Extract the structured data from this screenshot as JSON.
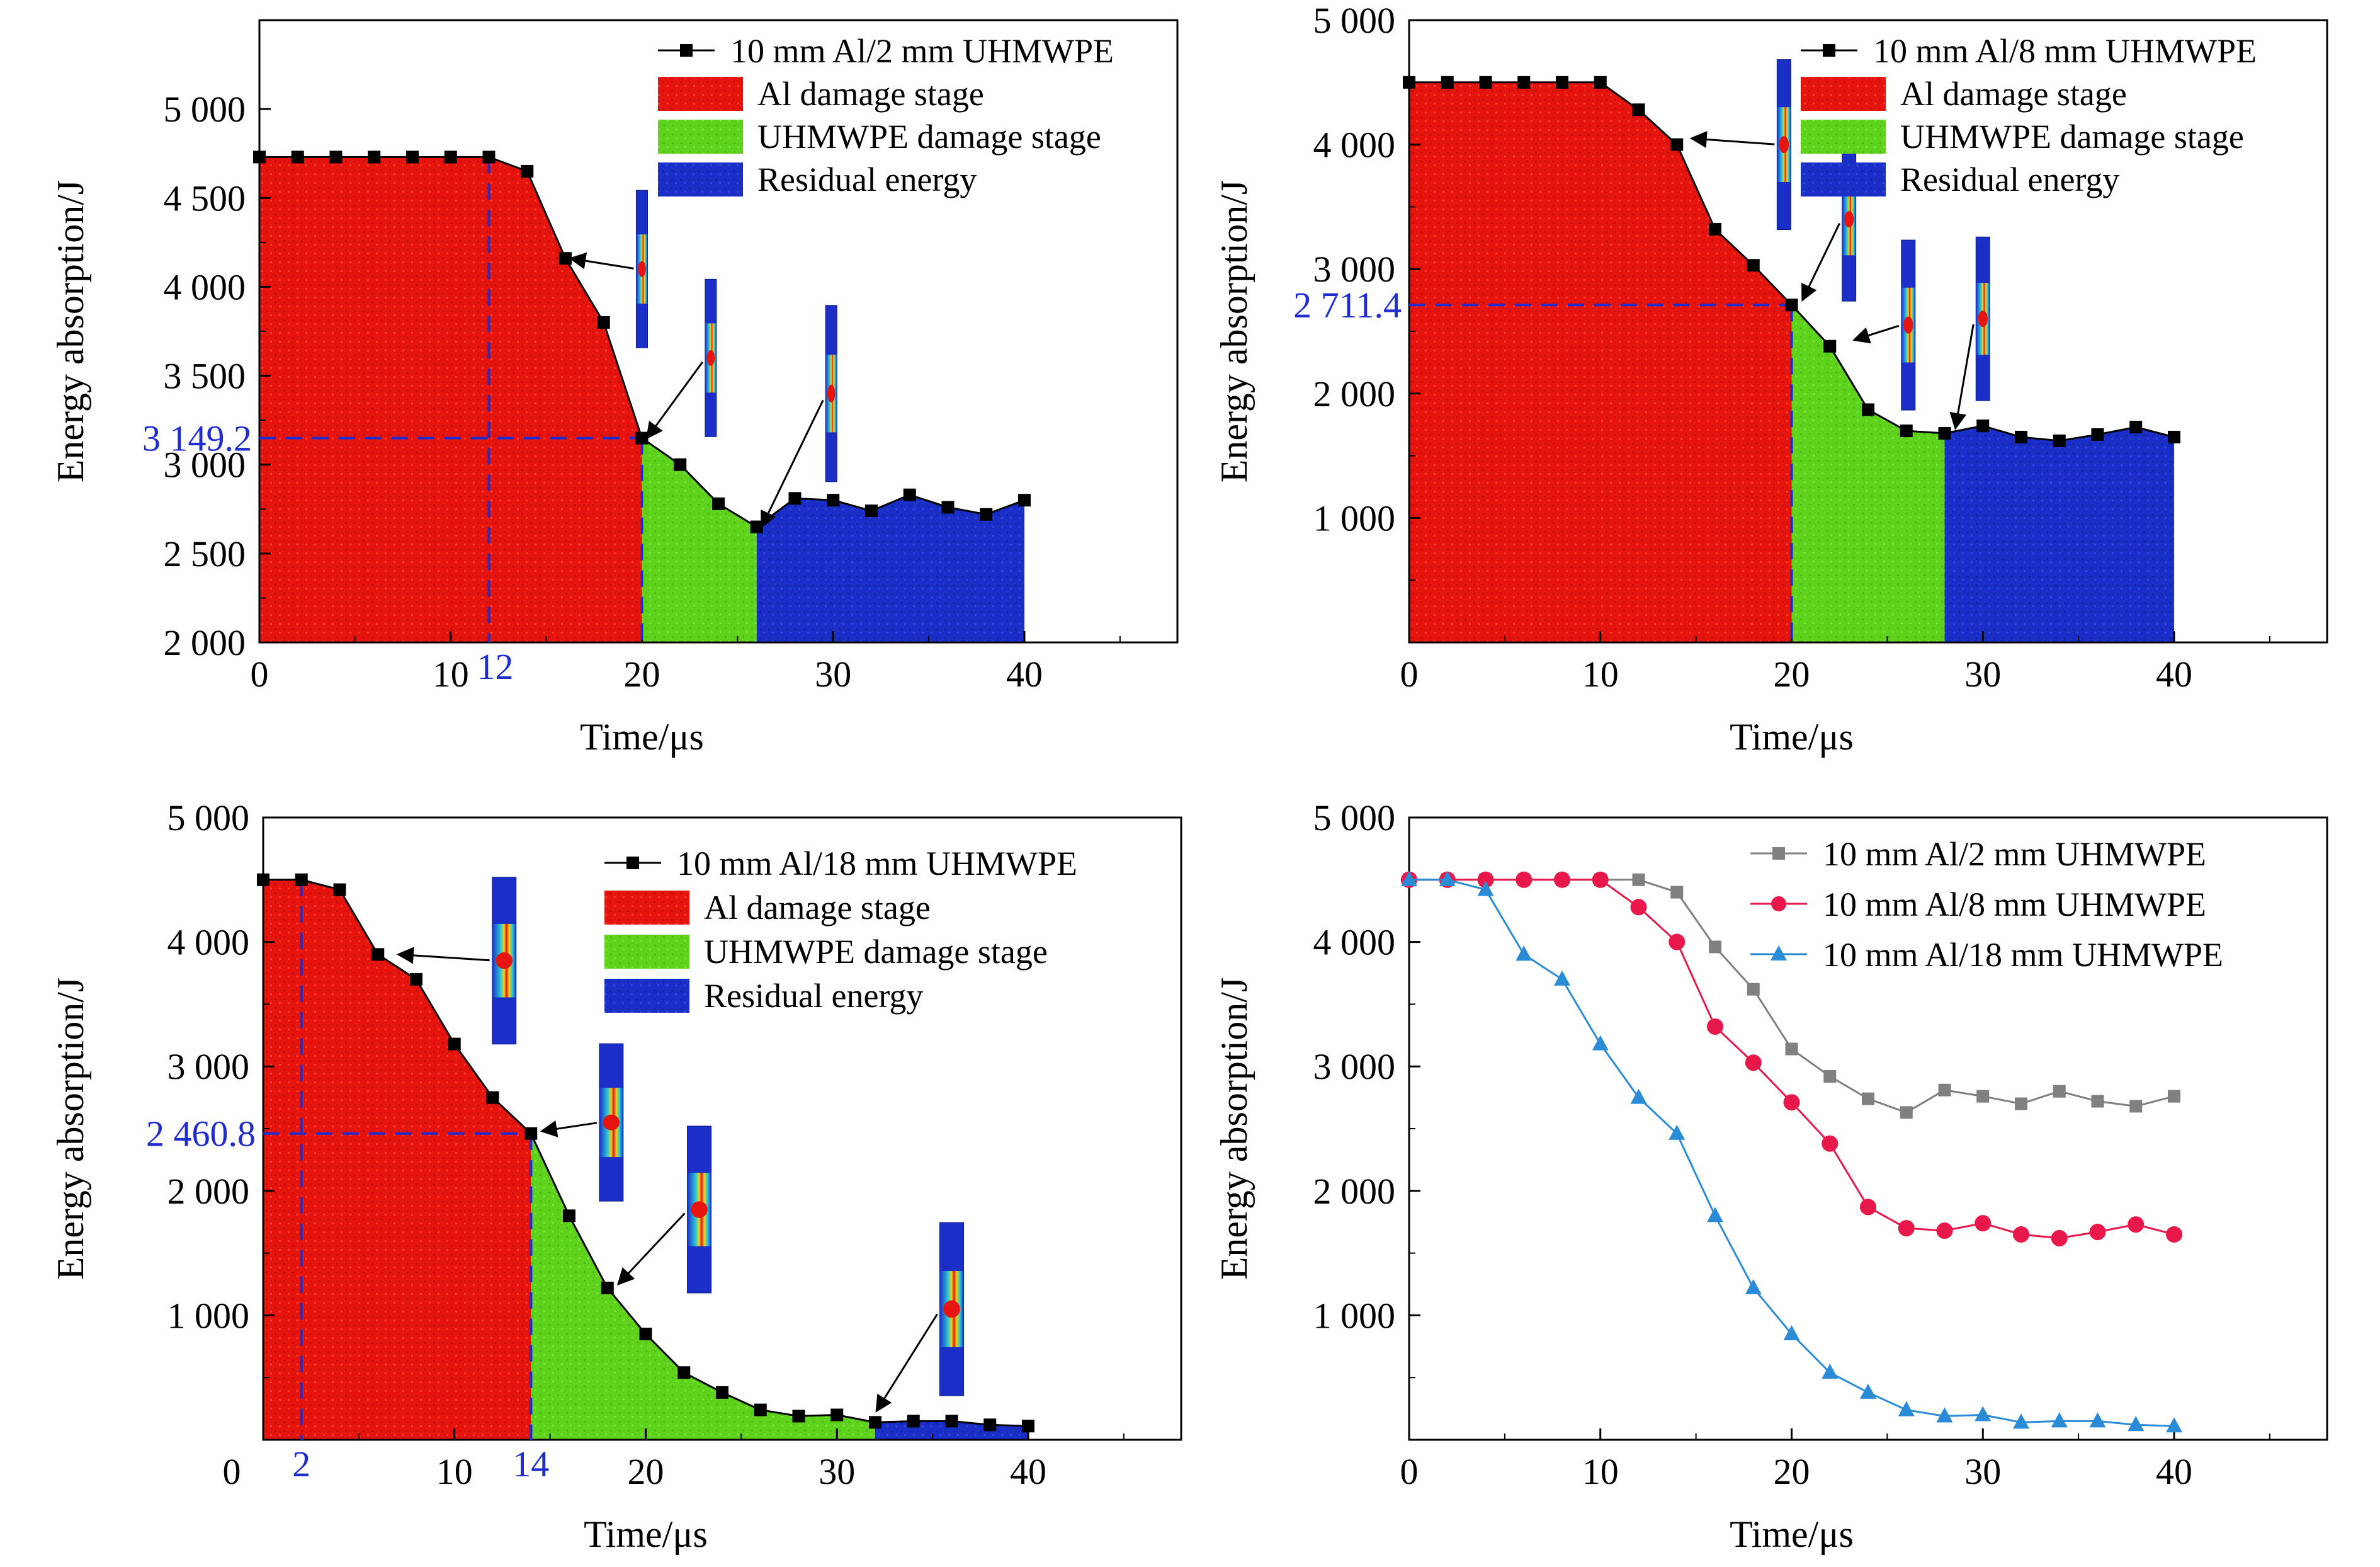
{
  "chart_data": [
    {
      "id": "a",
      "type": "area",
      "xlabel": "Time/μs",
      "ylabel": "Energy absorption/J",
      "xlim": [
        0,
        48
      ],
      "ylim": [
        2000,
        5500
      ],
      "xticks": [
        0,
        10,
        20,
        30,
        40
      ],
      "xtick_labels": [
        "0",
        "10",
        "20",
        "30",
        "40"
      ],
      "yticks": [
        2000,
        2500,
        3000,
        3500,
        4000,
        4500,
        5000
      ],
      "ytick_labels": [
        "2 000",
        "2 500",
        "3 000",
        "3 500",
        "4 000",
        "4 500",
        "5 000"
      ],
      "series": [
        {
          "name": "10 mm Al/2 mm UHMWPE",
          "x": [
            0,
            2,
            4,
            6,
            8,
            10,
            12,
            14,
            16,
            18,
            20,
            22,
            24,
            26,
            28,
            30,
            32,
            34,
            36,
            38,
            40
          ],
          "y": [
            4730,
            4730,
            4730,
            4730,
            4730,
            4730,
            4730,
            4650,
            4160,
            3800,
            3149.2,
            3000,
            2780,
            2650,
            2810,
            2800,
            2740,
            2830,
            2760,
            2720,
            2800
          ]
        }
      ],
      "stages": [
        {
          "name": "Al damage stage",
          "x_start": 0,
          "x_end": 20,
          "color": "#e8140f"
        },
        {
          "name": "UHMWPE damage stage",
          "x_start": 20,
          "x_end": 26,
          "color": "#5fd21e"
        },
        {
          "name": "Residual energy",
          "x_start": 26,
          "x_end": 40,
          "color": "#1a2fc7"
        }
      ],
      "annotations": [
        {
          "label": "3 149.2",
          "value": 3149.2,
          "axis": "y"
        },
        {
          "label": "12",
          "value": 12,
          "axis": "x"
        }
      ],
      "legend_position": "top-right"
    },
    {
      "id": "b",
      "type": "area",
      "xlabel": "Time/μs",
      "ylabel": "Energy absorption/J",
      "xlim": [
        0,
        48
      ],
      "ylim": [
        0,
        5000
      ],
      "xticks": [
        0,
        10,
        20,
        30,
        40
      ],
      "xtick_labels": [
        "0",
        "10",
        "20",
        "30",
        "40"
      ],
      "yticks": [
        1000,
        2000,
        3000,
        4000,
        5000
      ],
      "ytick_labels": [
        "1 000",
        "2 000",
        "3 000",
        "4 000",
        "5 000"
      ],
      "series": [
        {
          "name": "10 mm Al/8 mm UHMWPE",
          "x": [
            0,
            2,
            4,
            6,
            8,
            10,
            12,
            14,
            16,
            18,
            20,
            22,
            24,
            26,
            28,
            30,
            32,
            34,
            36,
            38,
            40
          ],
          "y": [
            4500,
            4500,
            4500,
            4500,
            4500,
            4500,
            4280,
            4000,
            3320,
            3030,
            2711.4,
            2380,
            1870,
            1700,
            1680,
            1740,
            1650,
            1620,
            1670,
            1730,
            1650
          ]
        }
      ],
      "stages": [
        {
          "name": "Al damage stage",
          "x_start": 0,
          "x_end": 20,
          "color": "#e8140f"
        },
        {
          "name": "UHMWPE damage stage",
          "x_start": 20,
          "x_end": 28,
          "color": "#5fd21e"
        },
        {
          "name": "Residual energy",
          "x_start": 28,
          "x_end": 40,
          "color": "#1a2fc7"
        }
      ],
      "annotations": [
        {
          "label": "2 711.4",
          "value": 2711.4,
          "axis": "y"
        }
      ],
      "legend_position": "top-right"
    },
    {
      "id": "c",
      "type": "area",
      "xlabel": "Time/μs",
      "ylabel": "Energy absorption/J",
      "xlim": [
        0,
        48
      ],
      "ylim": [
        0,
        5000
      ],
      "xticks": [
        0,
        10,
        20,
        30,
        40
      ],
      "xtick_labels": [
        "0",
        "10",
        "20",
        "30",
        "40"
      ],
      "yticks": [
        1000,
        2000,
        3000,
        4000,
        5000
      ],
      "ytick_labels": [
        "1 000",
        "2 000",
        "3 000",
        "4 000",
        "5 000"
      ],
      "series": [
        {
          "name": "10 mm Al/18 mm UHMWPE",
          "x": [
            0,
            2,
            4,
            6,
            8,
            10,
            12,
            14,
            16,
            18,
            20,
            22,
            24,
            26,
            28,
            30,
            32,
            34,
            36,
            38,
            40
          ],
          "y": [
            4500,
            4500,
            4420,
            3900,
            3700,
            3180,
            2750,
            2460.8,
            1800,
            1220,
            850,
            540,
            380,
            240,
            190,
            200,
            140,
            150,
            150,
            120,
            110
          ]
        }
      ],
      "stages": [
        {
          "name": "Al damage stage",
          "x_start": 0,
          "x_end": 14,
          "color": "#e8140f"
        },
        {
          "name": "UHMWPE damage stage",
          "x_start": 14,
          "x_end": 32,
          "color": "#5fd21e"
        },
        {
          "name": "Residual energy",
          "x_start": 32,
          "x_end": 40,
          "color": "#1a2fc7"
        }
      ],
      "annotations": [
        {
          "label": "2 460.8",
          "value": 2460.8,
          "axis": "y"
        },
        {
          "label": "2",
          "value": 2,
          "axis": "x"
        },
        {
          "label": "14",
          "value": 14,
          "axis": "x"
        }
      ],
      "legend_position": "top-right"
    },
    {
      "id": "d",
      "type": "line",
      "xlabel": "Time/μs",
      "ylabel": "Energy absorption/J",
      "xlim": [
        0,
        48
      ],
      "ylim": [
        0,
        5000
      ],
      "xticks": [
        0,
        10,
        20,
        30,
        40
      ],
      "xtick_labels": [
        "0",
        "10",
        "20",
        "30",
        "40"
      ],
      "yticks": [
        1000,
        2000,
        3000,
        4000,
        5000
      ],
      "ytick_labels": [
        "1 000",
        "2 000",
        "3 000",
        "4 000",
        "5 000"
      ],
      "x": [
        0,
        2,
        4,
        6,
        8,
        10,
        12,
        14,
        16,
        18,
        20,
        22,
        24,
        26,
        28,
        30,
        32,
        34,
        36,
        38,
        40
      ],
      "series": [
        {
          "name": "10 mm Al/2 mm UHMWPE",
          "color": "#808080",
          "marker": "square",
          "y": [
            4500,
            4500,
            4500,
            4500,
            4500,
            4500,
            4500,
            4400,
            3960,
            3620,
            3140,
            2920,
            2740,
            2630,
            2810,
            2760,
            2700,
            2800,
            2720,
            2680,
            2760
          ]
        },
        {
          "name": "10 mm Al/8 mm UHMWPE",
          "color": "#e8194a",
          "marker": "circle",
          "y": [
            4500,
            4500,
            4500,
            4500,
            4500,
            4500,
            4280,
            4000,
            3320,
            3030,
            2711.4,
            2380,
            1870,
            1700,
            1680,
            1740,
            1650,
            1620,
            1670,
            1730,
            1650
          ]
        },
        {
          "name": "10 mm Al/18 mm UHMWPE",
          "color": "#2a8bd6",
          "marker": "triangle",
          "y": [
            4500,
            4500,
            4420,
            3900,
            3700,
            3180,
            2750,
            2460.8,
            1800,
            1220,
            850,
            540,
            380,
            240,
            190,
            200,
            140,
            150,
            150,
            120,
            110
          ]
        }
      ],
      "legend_position": "top-right"
    }
  ],
  "colors": {
    "al_stage": "#e8140f",
    "uhmwpe_stage": "#5fd21e",
    "residual": "#1a2fc7",
    "annotation": "#1f2ccf"
  }
}
